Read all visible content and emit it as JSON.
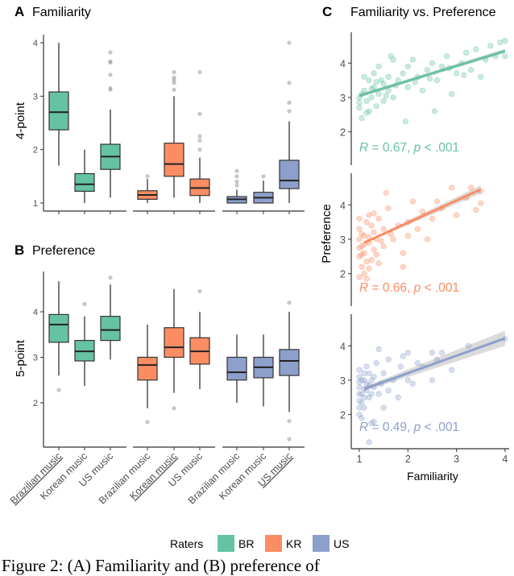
{
  "colors": {
    "BR": "#66c2a5",
    "KR": "#fc8d62",
    "US": "#8da0cb"
  },
  "caption": "Figure 2: (A) Familiarity and (B) preference of",
  "legend": {
    "title": "Raters",
    "items": [
      "BR",
      "KR",
      "US"
    ],
    "placement": "bottom"
  },
  "chart_data": [
    {
      "type": "boxplot",
      "panel_letter": "A",
      "title": "Familiarity",
      "ylabel": "4-point",
      "yticks": [
        1,
        2,
        3,
        4
      ],
      "groups": [
        {
          "rater": "BR",
          "boxes": [
            {
              "category": "Brazilian music",
              "whisker": [
                1.7,
                4.0
              ],
              "q1": 2.37,
              "median": 2.7,
              "q3": 3.08,
              "outliers": []
            },
            {
              "category": "Korean music",
              "whisker": [
                1.0,
                2.0
              ],
              "q1": 1.22,
              "median": 1.35,
              "q3": 1.55,
              "outliers": []
            },
            {
              "category": "US music",
              "whisker": [
                1.1,
                2.75
              ],
              "q1": 1.63,
              "median": 1.87,
              "q3": 2.1,
              "outliers": [
                3.12,
                3.15,
                3.4,
                3.63,
                3.65,
                3.82
              ]
            }
          ]
        },
        {
          "rater": "KR",
          "boxes": [
            {
              "category": "Brazilian music",
              "whisker": [
                1.0,
                1.45
              ],
              "q1": 1.07,
              "median": 1.15,
              "q3": 1.23,
              "outliers": [
                1.5
              ]
            },
            {
              "category": "Korean music",
              "whisker": [
                1.1,
                3.0
              ],
              "q1": 1.5,
              "median": 1.73,
              "q3": 2.12,
              "outliers": [
                3.12,
                3.25,
                3.3,
                3.35,
                3.45
              ]
            },
            {
              "category": "US music",
              "whisker": [
                1.0,
                1.85
              ],
              "q1": 1.14,
              "median": 1.28,
              "q3": 1.45,
              "outliers": [
                2.0,
                2.17,
                2.25,
                2.67,
                3.45
              ]
            }
          ]
        },
        {
          "rater": "US",
          "boxes": [
            {
              "category": "Brazilian music",
              "whisker": [
                1.0,
                1.25
              ],
              "q1": 1.0,
              "median": 1.07,
              "q3": 1.12,
              "outliers": [
                1.33,
                1.4,
                1.5,
                1.6
              ]
            },
            {
              "category": "Korean music",
              "whisker": [
                1.0,
                1.42
              ],
              "q1": 1.0,
              "median": 1.1,
              "q3": 1.2,
              "outliers": [
                1.5
              ]
            },
            {
              "category": "US music",
              "whisker": [
                1.0,
                2.53
              ],
              "q1": 1.27,
              "median": 1.42,
              "q3": 1.8,
              "outliers": [
                2.72,
                2.88,
                3.25,
                4.0
              ]
            }
          ]
        }
      ]
    },
    {
      "type": "boxplot",
      "panel_letter": "B",
      "title": "Preference",
      "ylabel": "5-point",
      "yticks": [
        2,
        3,
        4
      ],
      "xtick_labels": [
        "Brazilian music",
        "Korean music",
        "US music"
      ],
      "underlined": {
        "BR": "Brazilian music",
        "KR": "Korean music",
        "US": "US music"
      },
      "groups": [
        {
          "rater": "BR",
          "boxes": [
            {
              "category": "Brazilian music",
              "whisker": [
                2.6,
                4.67
              ],
              "q1": 3.33,
              "median": 3.72,
              "q3": 3.94,
              "outliers": [
                2.28
              ]
            },
            {
              "category": "Korean music",
              "whisker": [
                2.37,
                3.9
              ],
              "q1": 2.92,
              "median": 3.13,
              "q3": 3.37,
              "outliers": [
                4.17
              ]
            },
            {
              "category": "US music",
              "whisker": [
                2.95,
                4.6
              ],
              "q1": 3.37,
              "median": 3.6,
              "q3": 3.9,
              "outliers": [
                4.75
              ]
            }
          ]
        },
        {
          "rater": "KR",
          "boxes": [
            {
              "category": "Brazilian music",
              "whisker": [
                1.88,
                3.72
              ],
              "q1": 2.5,
              "median": 2.83,
              "q3": 3.0,
              "outliers": [
                1.58
              ]
            },
            {
              "category": "Korean music",
              "whisker": [
                2.22,
                4.5
              ],
              "q1": 3.0,
              "median": 3.22,
              "q3": 3.65,
              "outliers": [
                1.88
              ]
            },
            {
              "category": "US music",
              "whisker": [
                2.3,
                4.0
              ],
              "q1": 2.85,
              "median": 3.13,
              "q3": 3.43,
              "outliers": [
                4.45
              ]
            }
          ]
        },
        {
          "rater": "US",
          "boxes": [
            {
              "category": "Brazilian music",
              "whisker": [
                2.0,
                3.5
              ],
              "q1": 2.5,
              "median": 2.67,
              "q3": 3.0,
              "outliers": []
            },
            {
              "category": "Korean music",
              "whisker": [
                1.92,
                3.5
              ],
              "q1": 2.55,
              "median": 2.78,
              "q3": 3.0,
              "outliers": []
            },
            {
              "category": "US music",
              "whisker": [
                1.8,
                4.0
              ],
              "q1": 2.6,
              "median": 2.92,
              "q3": 3.17,
              "outliers": [
                1.2,
                1.6,
                4.2
              ]
            }
          ]
        }
      ]
    },
    {
      "type": "scatter",
      "panel_letter": "C",
      "title": "Familiarity vs. Preference",
      "xlabel": "Familiarity",
      "ylabel": "Preference",
      "xticks": [
        1,
        2,
        3,
        4
      ],
      "yticks": [
        2,
        3,
        4
      ],
      "panels": [
        {
          "rater": "BR",
          "R": "0.67",
          "p": ".001",
          "fit": [
            [
              1.0,
              3.05
            ],
            [
              4.0,
              4.35
            ]
          ],
          "points": [
            [
              1,
              3.0
            ],
            [
              1,
              2.7
            ],
            [
              1.05,
              2.4
            ],
            [
              1.1,
              3.2
            ],
            [
              1.15,
              2.9
            ],
            [
              1.2,
              3.5
            ],
            [
              1.2,
              2.6
            ],
            [
              1.3,
              3.3
            ],
            [
              1.3,
              3.7
            ],
            [
              1.4,
              3.1
            ],
            [
              1.4,
              3.9
            ],
            [
              1.5,
              3.4
            ],
            [
              1.5,
              2.9
            ],
            [
              1.6,
              3.6
            ],
            [
              1.6,
              3.2
            ],
            [
              1.7,
              3.0
            ],
            [
              1.7,
              4.1
            ],
            [
              1.8,
              3.5
            ],
            [
              1.9,
              3.7
            ],
            [
              1.95,
              2.3
            ],
            [
              2.0,
              3.3
            ],
            [
              2.0,
              3.9
            ],
            [
              2.1,
              4.1
            ],
            [
              2.2,
              3.6
            ],
            [
              2.3,
              3.2
            ],
            [
              2.4,
              3.8
            ],
            [
              2.5,
              4.0
            ],
            [
              2.6,
              3.5
            ],
            [
              2.7,
              3.9
            ],
            [
              2.8,
              4.2
            ],
            [
              2.9,
              3.1
            ],
            [
              3.0,
              3.7
            ],
            [
              3.1,
              4.0
            ],
            [
              3.2,
              4.3
            ],
            [
              3.3,
              3.8
            ],
            [
              3.4,
              4.4
            ],
            [
              3.5,
              3.6
            ],
            [
              3.6,
              4.1
            ],
            [
              3.7,
              4.5
            ],
            [
              3.8,
              4.2
            ],
            [
              3.9,
              4.6
            ],
            [
              4.0,
              4.2
            ],
            [
              4.0,
              4.65
            ],
            [
              1.1,
              3.6
            ],
            [
              1.25,
              3.0
            ],
            [
              1.45,
              3.5
            ],
            [
              2.55,
              2.6
            ],
            [
              1.35,
              2.75
            ],
            [
              1.05,
              3.1
            ],
            [
              1.15,
              2.55
            ],
            [
              1.55,
              3.05
            ],
            [
              1.75,
              3.35
            ],
            [
              2.15,
              3.45
            ],
            [
              2.45,
              3.55
            ],
            [
              2.85,
              3.85
            ],
            [
              3.15,
              3.65
            ],
            [
              1.65,
              4.2
            ],
            [
              1.35,
              3.45
            ],
            [
              1.0,
              2.85
            ],
            [
              1.25,
              3.25
            ]
          ]
        },
        {
          "rater": "KR",
          "R": "0.66",
          "p": ".001",
          "fit": [
            [
              1.1,
              2.9
            ],
            [
              3.5,
              4.45
            ]
          ],
          "points": [
            [
              1,
              1.9
            ],
            [
              1,
              2.5
            ],
            [
              1,
              3.0
            ],
            [
              1,
              3.3
            ],
            [
              1.05,
              2.8
            ],
            [
              1.05,
              2.2
            ],
            [
              1.1,
              3.1
            ],
            [
              1.1,
              2.6
            ],
            [
              1.15,
              3.5
            ],
            [
              1.15,
              1.85
            ],
            [
              1.2,
              2.9
            ],
            [
              1.2,
              3.7
            ],
            [
              1.25,
              2.4
            ],
            [
              1.3,
              3.2
            ],
            [
              1.3,
              2.7
            ],
            [
              1.35,
              3.0
            ],
            [
              1.4,
              3.6
            ],
            [
              1.4,
              2.3
            ],
            [
              1.5,
              3.3
            ],
            [
              1.5,
              2.8
            ],
            [
              1.6,
              3.9
            ],
            [
              1.7,
              3.0
            ],
            [
              1.8,
              3.4
            ],
            [
              1.9,
              2.6
            ],
            [
              2.0,
              3.5
            ],
            [
              2.0,
              3.1
            ],
            [
              2.1,
              4.1
            ],
            [
              2.2,
              3.3
            ],
            [
              2.3,
              3.8
            ],
            [
              2.4,
              3.0
            ],
            [
              2.5,
              3.6
            ],
            [
              2.6,
              4.1
            ],
            [
              2.7,
              3.9
            ],
            [
              2.9,
              4.5
            ],
            [
              3.0,
              3.7
            ],
            [
              3.2,
              4.2
            ],
            [
              3.3,
              4.5
            ],
            [
              3.5,
              4.4
            ],
            [
              3.5,
              4.05
            ],
            [
              3.4,
              3.85
            ],
            [
              1.55,
              4.35
            ],
            [
              1.9,
              2.2
            ],
            [
              1.1,
              2.0
            ],
            [
              1.25,
              3.4
            ],
            [
              1.0,
              2.75
            ],
            [
              1.05,
              3.15
            ],
            [
              1.1,
              2.85
            ],
            [
              1.15,
              2.35
            ],
            [
              1.2,
              3.05
            ],
            [
              1.0,
              3.6
            ],
            [
              1.35,
              2.55
            ],
            [
              1.45,
              2.95
            ],
            [
              1.3,
              3.75
            ],
            [
              1.65,
              3.15
            ],
            [
              1.05,
              2.55
            ],
            [
              1.2,
              2.15
            ]
          ]
        },
        {
          "rater": "US",
          "R": "0.49",
          "p": ".001",
          "fit": [
            [
              1.1,
              2.75
            ],
            [
              4.0,
              4.22
            ]
          ],
          "points": [
            [
              1,
              2.0
            ],
            [
              1,
              2.4
            ],
            [
              1,
              2.8
            ],
            [
              1,
              3.1
            ],
            [
              1,
              3.3
            ],
            [
              1.05,
              2.6
            ],
            [
              1.05,
              1.9
            ],
            [
              1.1,
              3.0
            ],
            [
              1.1,
              2.2
            ],
            [
              1.15,
              2.7
            ],
            [
              1.15,
              3.4
            ],
            [
              1.2,
              1.2
            ],
            [
              1.2,
              2.5
            ],
            [
              1.25,
              3.0
            ],
            [
              1.3,
              1.8
            ],
            [
              1.3,
              2.8
            ],
            [
              1.35,
              3.5
            ],
            [
              1.4,
              3.9
            ],
            [
              1.4,
              2.6
            ],
            [
              1.5,
              3.2
            ],
            [
              1.5,
              2.2
            ],
            [
              1.6,
              2.7
            ],
            [
              1.6,
              3.6
            ],
            [
              1.7,
              3.0
            ],
            [
              1.8,
              2.5
            ],
            [
              1.85,
              3.4
            ],
            [
              1.9,
              3.7
            ],
            [
              2.0,
              3.8
            ],
            [
              2.0,
              3.0
            ],
            [
              2.1,
              2.9
            ],
            [
              2.2,
              3.5
            ],
            [
              2.3,
              3.4
            ],
            [
              2.5,
              3.8
            ],
            [
              2.5,
              3.0
            ],
            [
              2.6,
              3.6
            ],
            [
              2.7,
              3.8
            ],
            [
              2.9,
              3.3
            ],
            [
              3.25,
              4.0
            ],
            [
              4.0,
              4.2
            ],
            [
              1.25,
              1.75
            ],
            [
              1.1,
              3.2
            ],
            [
              1.0,
              2.2
            ],
            [
              1.0,
              2.6
            ],
            [
              1.05,
              3.0
            ],
            [
              1.1,
              2.5
            ],
            [
              1.15,
              2.9
            ],
            [
              1.2,
              3.2
            ],
            [
              1.0,
              2.95
            ],
            [
              1.05,
              2.35
            ],
            [
              1.25,
              2.6
            ],
            [
              1.3,
              3.1
            ],
            [
              1.1,
              2.75
            ],
            [
              1.45,
              2.9
            ],
            [
              1.2,
              2.85
            ]
          ]
        }
      ]
    }
  ]
}
